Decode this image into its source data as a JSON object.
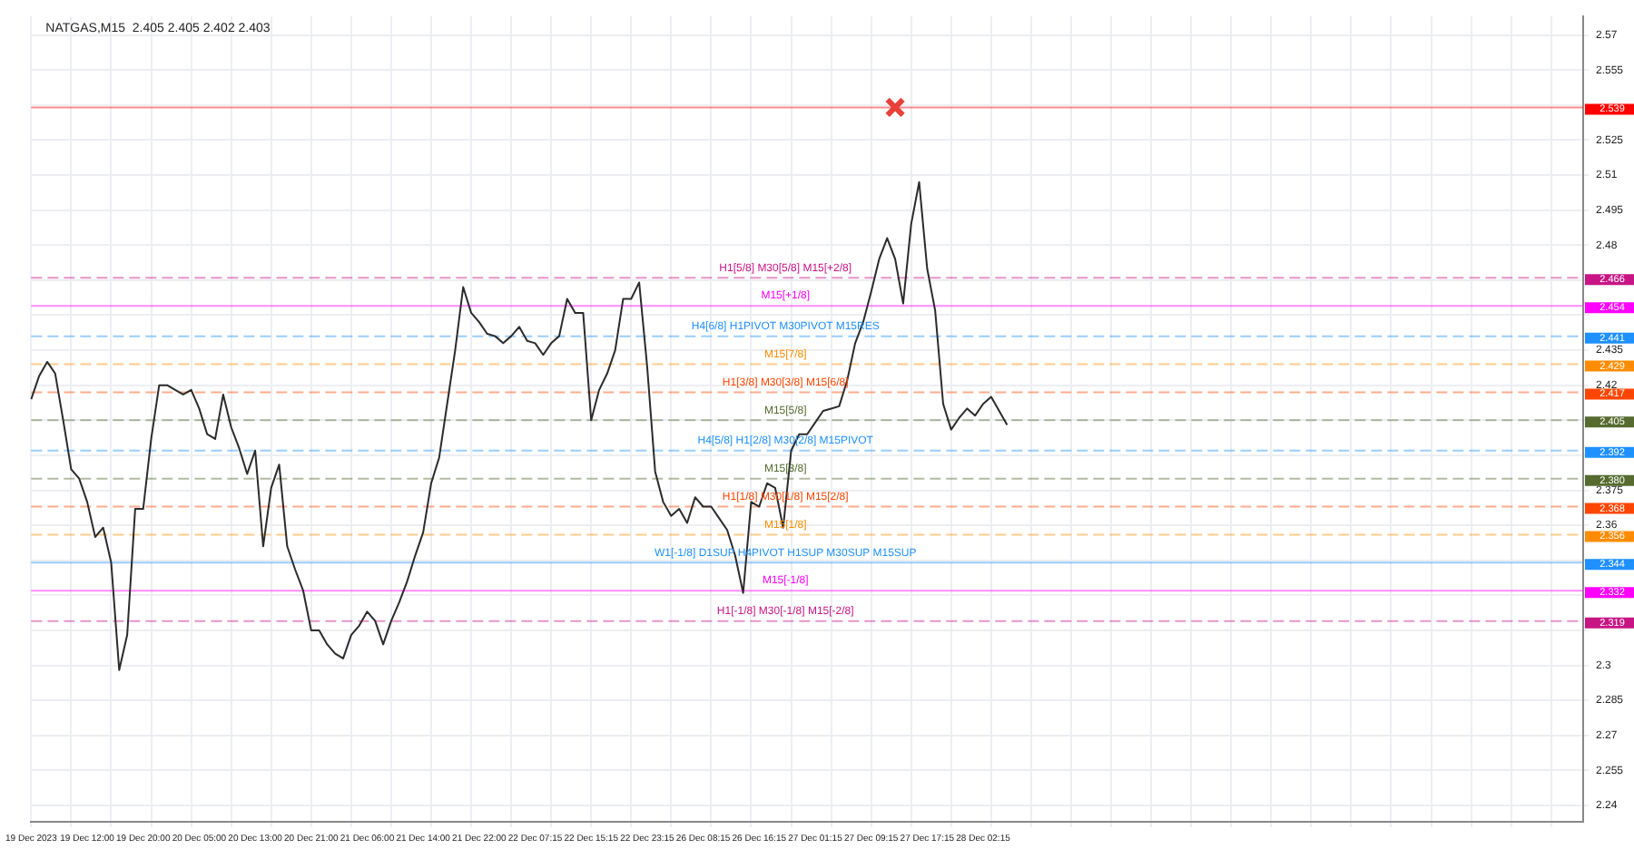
{
  "chart_data": {
    "type": "line",
    "title": "NATGAS,M15  2.405 2.405 2.402 2.403",
    "categories": [
      "19 Dec 2023",
      null,
      null,
      null,
      null,
      null,
      null,
      "19 Dec 12:00",
      null,
      null,
      null,
      null,
      null,
      null,
      "19 Dec 20:00",
      null,
      null,
      null,
      null,
      null,
      null,
      "20 Dec 05:00",
      null,
      null,
      null,
      null,
      null,
      null,
      "20 Dec 13:00",
      null,
      null,
      null,
      null,
      null,
      null,
      "20 Dec 21:00",
      null,
      null,
      null,
      null,
      null,
      null,
      "21 Dec 06:00",
      null,
      null,
      null,
      null,
      null,
      null,
      "21 Dec 14:00",
      null,
      null,
      null,
      null,
      null,
      null,
      "21 Dec 22:00",
      null,
      null,
      null,
      null,
      null,
      null,
      "22 Dec 07:15",
      null,
      null,
      null,
      null,
      null,
      null,
      "22 Dec 15:15",
      null,
      null,
      null,
      null,
      null,
      null,
      "22 Dec 23:15",
      null,
      null,
      null,
      null,
      null,
      null,
      "26 Dec 08:15",
      null,
      null,
      null,
      null,
      null,
      null,
      "26 Dec 16:15",
      null,
      null,
      null,
      null,
      null,
      null,
      "27 Dec 01:15",
      null,
      null,
      null,
      null,
      null,
      null,
      "27 Dec 09:15",
      null,
      null,
      null,
      null,
      null,
      null,
      "27 Dec 17:15",
      null,
      null,
      null,
      null,
      null,
      null,
      "28 Dec 02:15",
      null,
      null,
      null,
      null,
      null,
      null,
      null,
      null,
      null,
      null,
      null,
      null,
      null,
      null,
      null,
      null,
      null,
      null,
      null,
      null,
      null,
      null,
      null,
      null,
      null,
      null,
      null,
      null,
      null,
      null,
      null,
      null,
      null,
      null,
      null,
      null,
      null,
      null,
      null,
      null,
      null,
      null,
      null,
      null,
      null,
      null,
      null,
      null,
      null,
      null,
      null,
      null,
      null,
      null,
      null,
      null,
      null,
      null,
      null,
      null,
      null,
      null,
      null,
      null,
      null,
      null,
      null,
      null,
      null,
      null,
      null,
      null,
      null,
      null,
      null
    ],
    "series": [
      {
        "color": "#2b2b2b",
        "values": [
          2.414,
          2.424,
          2.43,
          2.425,
          2.405,
          2.384,
          2.38,
          2.37,
          2.355,
          2.359,
          2.344,
          2.298,
          2.313,
          2.367,
          2.367,
          2.397,
          2.42,
          2.42,
          2.418,
          2.416,
          2.418,
          2.41,
          2.399,
          2.397,
          2.416,
          2.402,
          2.393,
          2.382,
          2.392,
          2.351,
          2.376,
          2.386,
          2.351,
          2.341,
          2.332,
          2.315,
          2.315,
          2.309,
          2.305,
          2.303,
          2.313,
          2.317,
          2.323,
          2.319,
          2.309,
          2.319,
          2.327,
          2.336,
          2.347,
          2.357,
          2.378,
          2.389,
          2.412,
          2.435,
          2.462,
          2.451,
          2.447,
          2.442,
          2.441,
          2.438,
          2.441,
          2.445,
          2.439,
          2.438,
          2.433,
          2.438,
          2.441,
          2.457,
          2.451,
          2.451,
          2.405,
          2.418,
          2.425,
          2.435,
          2.457,
          2.457,
          2.464,
          2.428,
          2.383,
          2.37,
          2.364,
          2.367,
          2.361,
          2.372,
          2.368,
          2.368,
          2.363,
          2.358,
          2.347,
          2.331,
          2.37,
          2.368,
          2.378,
          2.376,
          2.359,
          2.392,
          2.399,
          2.399,
          2.404,
          2.409,
          2.41,
          2.411,
          2.422,
          2.438,
          2.447,
          2.46,
          2.474,
          2.483,
          2.474,
          2.455,
          2.489,
          2.507,
          2.47,
          2.452,
          2.412,
          2.401,
          2.406,
          2.41,
          2.407,
          2.412,
          2.415,
          2.409,
          2.403,
          null,
          null,
          null,
          null,
          null,
          null,
          null,
          null,
          null,
          null,
          null,
          null,
          null,
          null,
          null,
          null,
          null,
          null,
          null,
          null,
          null,
          null,
          null,
          null,
          null,
          null,
          null,
          null,
          null,
          null,
          null,
          null,
          null,
          null,
          null,
          null,
          null,
          null,
          null,
          null,
          null,
          null,
          null,
          null,
          null,
          null,
          null,
          null,
          null,
          null,
          null,
          null,
          null,
          null,
          null,
          null,
          null,
          null,
          null,
          null,
          null,
          null,
          null,
          null,
          null,
          null,
          null,
          null,
          null,
          null,
          null,
          null
        ]
      },
      {
        "type": "scatter",
        "marker": "cross",
        "color": "#e8413c",
        "values": [
          null,
          null,
          null,
          null,
          null,
          null,
          null,
          null,
          null,
          null,
          null,
          null,
          null,
          null,
          null,
          null,
          null,
          null,
          null,
          null,
          null,
          null,
          null,
          null,
          null,
          null,
          null,
          null,
          null,
          null,
          null,
          null,
          null,
          null,
          null,
          null,
          null,
          null,
          null,
          null,
          null,
          null,
          null,
          null,
          null,
          null,
          null,
          null,
          null,
          null,
          null,
          null,
          null,
          null,
          null,
          null,
          null,
          null,
          null,
          null,
          null,
          null,
          null,
          null,
          null,
          null,
          null,
          null,
          null,
          null,
          null,
          null,
          null,
          null,
          null,
          null,
          null,
          null,
          null,
          null,
          null,
          null,
          null,
          null,
          null,
          null,
          null,
          null,
          null,
          null,
          null,
          null,
          null,
          null,
          null,
          null,
          null,
          null,
          null,
          null,
          null,
          null,
          null,
          null,
          null,
          null,
          null,
          null,
          2.539,
          null,
          null,
          null,
          null,
          null,
          null,
          null,
          null,
          null,
          null,
          null,
          null,
          null,
          null,
          null,
          null,
          null,
          null,
          null,
          null,
          null,
          null,
          null,
          null,
          null,
          null,
          null,
          null,
          null,
          null,
          null,
          null,
          null,
          null,
          null,
          null,
          null,
          null,
          null,
          null,
          null,
          null,
          null,
          null,
          null,
          null,
          null,
          null,
          null,
          null,
          null,
          null,
          null,
          null,
          null,
          null,
          null,
          null,
          null,
          null,
          null,
          null,
          null,
          null,
          null,
          null,
          null,
          null,
          null,
          null,
          null,
          null,
          null,
          null,
          null,
          null,
          null,
          null,
          null,
          null,
          null,
          null,
          null,
          null,
          null,
          null
        ]
      }
    ],
    "ylim": [
      2.233,
      2.578
    ],
    "yticks": [
      2.24,
      2.255,
      2.27,
      2.285,
      2.3,
      {
        "value": 2.315,
        "label": null
      },
      {
        "value": 2.33,
        "label": null
      },
      {
        "value": 2.345,
        "label": null
      },
      2.36,
      2.375,
      {
        "value": 2.39,
        "label": null
      },
      {
        "value": 2.405,
        "label": null
      },
      2.42,
      2.435,
      {
        "value": 2.45,
        "label": null
      },
      {
        "value": 2.465,
        "label": null
      },
      2.48,
      2.495,
      2.51,
      2.525,
      {
        "value": 2.54,
        "label": null
      },
      2.555,
      2.57
    ],
    "ref_lines": [
      {
        "axis": "y",
        "value": 2.539,
        "label": "2.539",
        "color": "#ff0000",
        "line_style": "solid"
      },
      {
        "axis": "y",
        "value": 2.466,
        "label": "2.466",
        "color": "#c71585",
        "line_style": "dashed"
      },
      {
        "axis": "y",
        "value": 2.454,
        "label": "2.454",
        "color": "#ff00ff",
        "line_style": "solid"
      },
      {
        "axis": "y",
        "value": 2.441,
        "label": "2.441",
        "color": "#1e90ff",
        "line_style": "dashed"
      },
      {
        "axis": "y",
        "value": 2.429,
        "label": "2.429",
        "color": "#ff8c00",
        "line_style": "dashed"
      },
      {
        "axis": "y",
        "value": 2.417,
        "label": "2.417",
        "color": "#ff4500",
        "line_style": "dashed"
      },
      {
        "axis": "y",
        "value": 2.405,
        "label": "2.405",
        "color": "#556b2f",
        "line_style": "dashed"
      },
      {
        "axis": "y",
        "value": 2.392,
        "label": "2.392",
        "color": "#1e90ff",
        "line_style": "dashed"
      },
      {
        "axis": "y",
        "value": 2.38,
        "label": "2.380",
        "color": "#556b2f",
        "line_style": "dashed"
      },
      {
        "axis": "y",
        "value": 2.368,
        "label": "2.368",
        "color": "#ff4500",
        "line_style": "dashed"
      },
      {
        "axis": "y",
        "value": 2.356,
        "label": "2.356",
        "color": "#ff8c00",
        "line_style": "dashed"
      },
      {
        "axis": "y",
        "value": 2.344,
        "label": "2.344",
        "color": "#1e90ff",
        "line_style": "solid"
      },
      {
        "axis": "y",
        "value": 2.332,
        "label": "2.332",
        "color": "#ff00ff",
        "line_style": "solid"
      },
      {
        "axis": "y",
        "value": 2.319,
        "label": "2.319",
        "color": "#c71585",
        "line_style": "dashed"
      }
    ],
    "annotations": [
      {
        "text": "H1[5/8] M30[5/8] M15[+2/8]",
        "y": 2.466
      },
      {
        "text": "M15[+1/8]",
        "y": 2.454
      },
      {
        "text": "H4[6/8] H1PIVOT M30PIVOT M15RES",
        "y": 2.441
      },
      {
        "text": "M15[7/8]",
        "y": 2.429
      },
      {
        "text": "H1[3/8] M30[3/8] M15[6/8]",
        "y": 2.417
      },
      {
        "text": "M15[5/8]",
        "y": 2.405
      },
      {
        "text": "H4[5/8] H1[2/8] M30[2/8] M15PIVOT",
        "y": 2.392
      },
      {
        "text": "M15[3/8]",
        "y": 2.38
      },
      {
        "text": "H1[1/8] M30[1/8] M15[2/8]",
        "y": 2.368
      },
      {
        "text": "M15[1/8]",
        "y": 2.356
      },
      {
        "text": "W1[-1/8] D1SUP H4PIVOT H1SUP M30SUP M15SUP",
        "y": 2.344
      },
      {
        "text": "M15[-1/8]",
        "y": 2.332
      },
      {
        "text": "H1[-1/8] M30[-1/8] M15[-2/8]",
        "y": 2.319
      }
    ],
    "grid": true,
    "legend": false
  }
}
